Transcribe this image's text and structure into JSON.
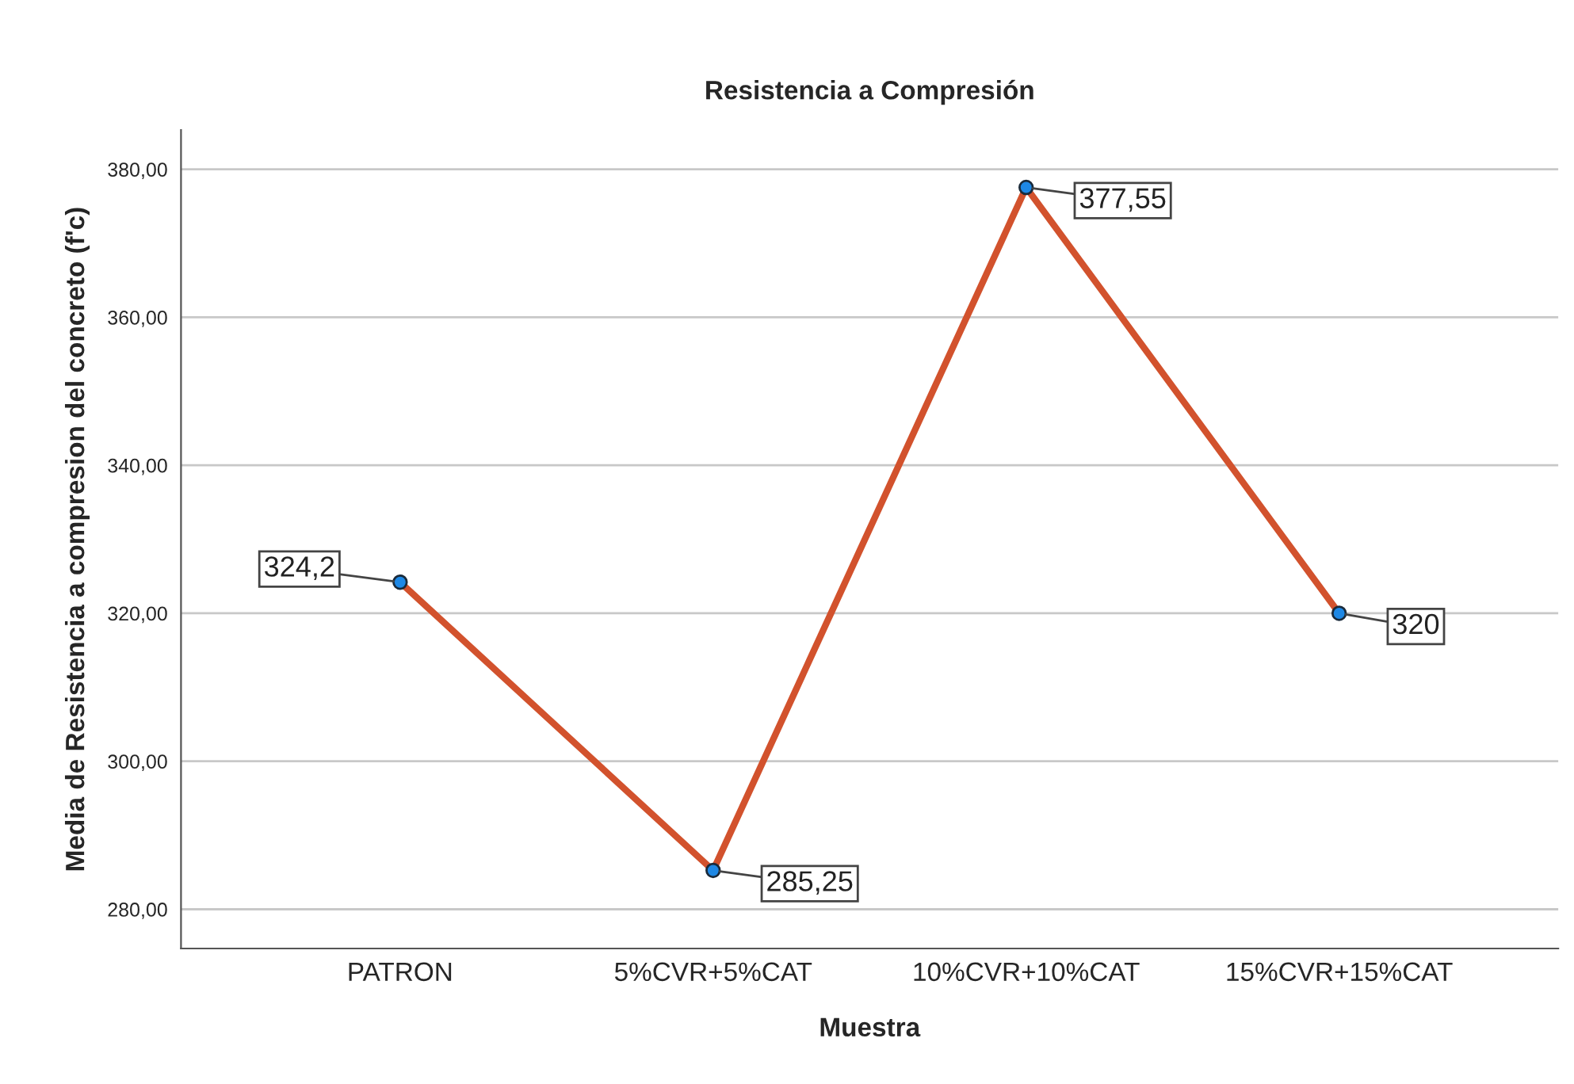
{
  "chart_data": {
    "type": "line",
    "title": "Resistencia a Compresión",
    "xlabel": "Muestra",
    "ylabel": "Media de Resistencia a compresion del concreto (f'c)",
    "categories": [
      "PATRON",
      "5%CVR+5%CAT",
      "10%CVR+10%CAT",
      "15%CVR+15%CAT"
    ],
    "series": [
      {
        "color": "#d2522d",
        "values": [
          324.2,
          285.25,
          377.55,
          320
        ],
        "value_labels": [
          "324,2",
          "285,25",
          "377,55",
          "320"
        ]
      }
    ],
    "ylim": [
      274.7,
      385.3
    ],
    "yticks": [
      {
        "value": 280,
        "label": "280,00"
      },
      {
        "value": 300,
        "label": "300,00"
      },
      {
        "value": 320,
        "label": "320,00"
      },
      {
        "value": 340,
        "label": "340,00"
      },
      {
        "value": 360,
        "label": "360,00"
      },
      {
        "value": 380,
        "label": "380,00"
      }
    ],
    "grid": "y",
    "marker": "circle",
    "line_style": "solid",
    "legend": false
  }
}
